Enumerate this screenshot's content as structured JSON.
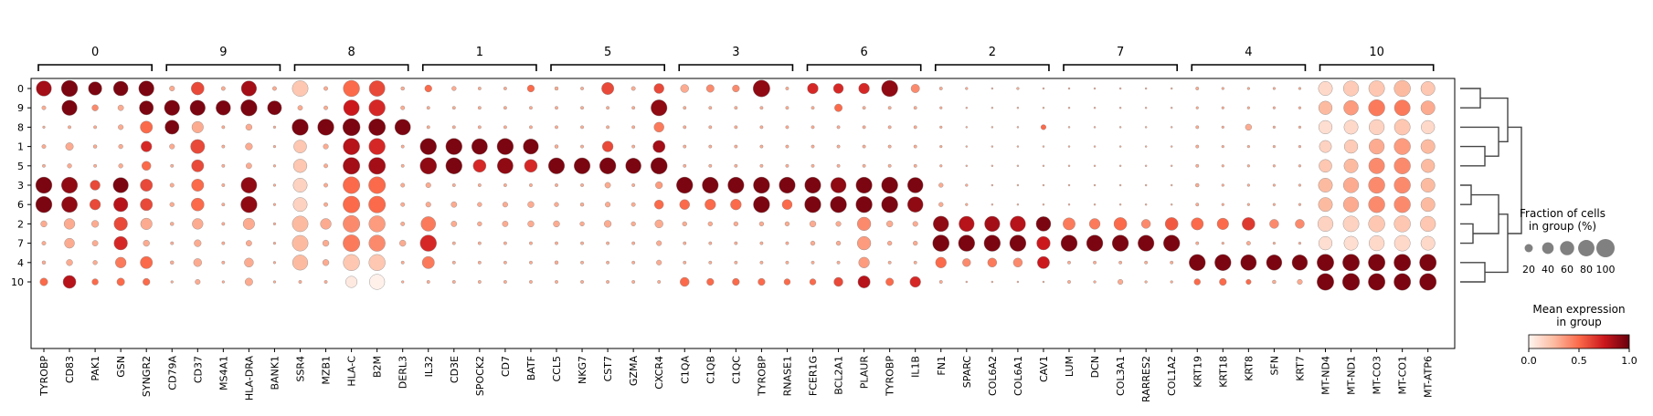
{
  "chart_data": {
    "type": "dotplot",
    "gene_groups": [
      {
        "label": "0",
        "genes": [
          "TYROBP",
          "CD83",
          "PAK1",
          "GSN",
          "SYNGR2"
        ]
      },
      {
        "label": "9",
        "genes": [
          "CD79A",
          "CD37",
          "MS4A1",
          "HLA-DRA",
          "BANK1"
        ]
      },
      {
        "label": "8",
        "genes": [
          "SSR4",
          "MZB1",
          "HLA-C",
          "B2M",
          "DERL3"
        ]
      },
      {
        "label": "1",
        "genes": [
          "IL32",
          "CD3E",
          "SPOCK2",
          "CD7",
          "BATF"
        ]
      },
      {
        "label": "5",
        "genes": [
          "CCL5",
          "NKG7",
          "CST7",
          "GZMA",
          "CXCR4"
        ]
      },
      {
        "label": "3",
        "genes": [
          "C1QA",
          "C1QB",
          "C1QC",
          "TYROBP",
          "RNASE1"
        ]
      },
      {
        "label": "6",
        "genes": [
          "FCER1G",
          "BCL2A1",
          "PLAUR",
          "TYROBP",
          "IL1B"
        ]
      },
      {
        "label": "2",
        "genes": [
          "FN1",
          "SPARC",
          "COL6A2",
          "COL6A1",
          "CAV1"
        ]
      },
      {
        "label": "7",
        "genes": [
          "LUM",
          "DCN",
          "COL3A1",
          "RARRES2",
          "COL1A2"
        ]
      },
      {
        "label": "4",
        "genes": [
          "KRT19",
          "KRT18",
          "KRT8",
          "SFN",
          "KRT7"
        ]
      },
      {
        "label": "10",
        "genes": [
          "MT-ND4",
          "MT-ND1",
          "MT-CO3",
          "MT-CO1",
          "MT-ATP6"
        ]
      }
    ],
    "cluster_order": [
      "0",
      "9",
      "8",
      "1",
      "5",
      "3",
      "6",
      "2",
      "7",
      "4",
      "10"
    ],
    "fraction": [
      [
        70,
        80,
        55,
        65,
        70,
        8,
        50,
        5,
        70,
        5,
        75,
        5,
        80,
        75,
        4,
        15,
        6,
        3,
        3,
        15,
        4,
        3,
        45,
        5,
        30,
        20,
        18,
        15,
        85,
        3,
        35,
        30,
        35,
        80,
        22,
        3,
        2,
        1,
        2,
        1,
        1,
        1,
        1,
        1,
        1,
        3,
        2,
        2,
        2,
        2,
        60,
        70,
        75,
        80,
        60
      ],
      [
        5,
        70,
        12,
        10,
        60,
        70,
        70,
        65,
        80,
        60,
        7,
        5,
        75,
        80,
        5,
        3,
        3,
        3,
        3,
        3,
        3,
        3,
        3,
        3,
        78,
        3,
        3,
        3,
        3,
        3,
        3,
        18,
        3,
        3,
        3,
        2,
        1,
        1,
        1,
        1,
        1,
        1,
        1,
        1,
        1,
        2,
        2,
        2,
        2,
        2,
        55,
        65,
        80,
        75,
        60
      ],
      [
        2,
        3,
        3,
        8,
        45,
        60,
        40,
        3,
        12,
        2,
        80,
        80,
        90,
        85,
        75,
        3,
        3,
        3,
        3,
        3,
        3,
        3,
        3,
        3,
        30,
        3,
        3,
        3,
        3,
        3,
        3,
        3,
        3,
        3,
        3,
        2,
        1,
        1,
        1,
        8,
        1,
        1,
        1,
        1,
        1,
        3,
        2,
        12,
        2,
        2,
        55,
        60,
        70,
        75,
        55
      ],
      [
        5,
        18,
        4,
        6,
        35,
        8,
        60,
        3,
        15,
        2,
        50,
        8,
        82,
        80,
        3,
        80,
        80,
        75,
        80,
        70,
        4,
        3,
        35,
        3,
        45,
        3,
        3,
        3,
        3,
        3,
        3,
        3,
        3,
        3,
        3,
        2,
        1,
        1,
        1,
        1,
        1,
        1,
        1,
        1,
        1,
        3,
        2,
        2,
        2,
        2,
        45,
        55,
        70,
        80,
        60
      ],
      [
        3,
        6,
        3,
        6,
        25,
        3,
        45,
        3,
        10,
        2,
        55,
        5,
        85,
        85,
        3,
        82,
        80,
        50,
        75,
        50,
        78,
        78,
        80,
        72,
        82,
        3,
        3,
        3,
        3,
        3,
        3,
        3,
        3,
        3,
        3,
        2,
        1,
        1,
        1,
        1,
        1,
        1,
        1,
        1,
        1,
        3,
        2,
        2,
        2,
        2,
        50,
        60,
        75,
        80,
        55
      ],
      [
        80,
        78,
        30,
        70,
        45,
        5,
        45,
        3,
        75,
        2,
        60,
        5,
        85,
        85,
        5,
        8,
        3,
        3,
        3,
        3,
        3,
        3,
        10,
        3,
        15,
        80,
        78,
        78,
        80,
        78,
        78,
        72,
        78,
        80,
        72,
        6,
        2,
        1,
        1,
        1,
        1,
        1,
        1,
        1,
        1,
        4,
        2,
        2,
        2,
        2,
        60,
        70,
        80,
        80,
        60
      ],
      [
        80,
        75,
        35,
        62,
        45,
        6,
        50,
        3,
        80,
        2,
        60,
        5,
        85,
        85,
        5,
        8,
        10,
        6,
        8,
        12,
        6,
        4,
        8,
        5,
        25,
        30,
        35,
        35,
        80,
        30,
        80,
        80,
        80,
        80,
        72,
        6,
        2,
        1,
        1,
        1,
        1,
        1,
        1,
        1,
        1,
        3,
        2,
        2,
        2,
        2,
        60,
        70,
        80,
        80,
        60
      ],
      [
        12,
        35,
        15,
        55,
        40,
        4,
        35,
        3,
        40,
        2,
        75,
        35,
        85,
        80,
        5,
        65,
        10,
        6,
        10,
        12,
        12,
        6,
        15,
        6,
        20,
        6,
        6,
        6,
        6,
        6,
        12,
        8,
        55,
        12,
        8,
        72,
        70,
        70,
        72,
        65,
        45,
        35,
        50,
        25,
        50,
        45,
        40,
        50,
        25,
        25,
        70,
        75,
        80,
        80,
        70
      ],
      [
        5,
        30,
        10,
        55,
        12,
        3,
        15,
        3,
        10,
        2,
        75,
        12,
        85,
        80,
        12,
        80,
        3,
        3,
        3,
        3,
        3,
        3,
        3,
        3,
        8,
        3,
        3,
        3,
        3,
        3,
        6,
        6,
        55,
        6,
        6,
        82,
        80,
        80,
        80,
        55,
        80,
        80,
        80,
        78,
        80,
        3,
        2,
        5,
        2,
        2,
        55,
        60,
        70,
        75,
        60
      ],
      [
        4,
        12,
        6,
        35,
        45,
        4,
        20,
        3,
        25,
        2,
        70,
        12,
        80,
        80,
        3,
        45,
        3,
        3,
        3,
        3,
        4,
        3,
        3,
        3,
        8,
        3,
        3,
        3,
        3,
        3,
        3,
        3,
        35,
        3,
        3,
        35,
        20,
        25,
        25,
        45,
        3,
        3,
        3,
        3,
        3,
        80,
        80,
        75,
        72,
        72,
        85,
        85,
        85,
        85,
        85
      ],
      [
        18,
        50,
        12,
        18,
        15,
        2,
        8,
        2,
        18,
        2,
        3,
        3,
        40,
        70,
        2,
        3,
        3,
        3,
        3,
        3,
        3,
        3,
        3,
        3,
        3,
        25,
        15,
        15,
        15,
        12,
        12,
        25,
        45,
        18,
        35,
        3,
        1,
        1,
        1,
        1,
        3,
        2,
        8,
        2,
        2,
        12,
        15,
        8,
        4,
        8,
        85,
        88,
        85,
        85,
        85
      ]
    ],
    "expression": [
      [
        0.85,
        0.95,
        0.95,
        0.95,
        0.95,
        0.3,
        0.6,
        0.3,
        0.85,
        0.3,
        0.2,
        0.3,
        0.5,
        0.6,
        0.3,
        0.5,
        0.3,
        0.3,
        0.3,
        0.5,
        0.3,
        0.3,
        0.6,
        0.3,
        0.6,
        0.3,
        0.4,
        0.4,
        0.9,
        0.3,
        0.7,
        0.7,
        0.7,
        0.9,
        0.4,
        0.3,
        0.3,
        0.3,
        0.3,
        0.3,
        0.3,
        0.3,
        0.3,
        0.3,
        0.3,
        0.3,
        0.3,
        0.3,
        0.3,
        0.3,
        0.12,
        0.18,
        0.2,
        0.25,
        0.2
      ],
      [
        0.3,
        0.95,
        0.4,
        0.3,
        0.95,
        0.95,
        0.95,
        0.95,
        0.95,
        0.95,
        0.3,
        0.3,
        0.75,
        0.7,
        0.3,
        0.3,
        0.3,
        0.3,
        0.3,
        0.3,
        0.3,
        0.3,
        0.3,
        0.3,
        0.9,
        0.3,
        0.3,
        0.3,
        0.3,
        0.3,
        0.3,
        0.5,
        0.3,
        0.3,
        0.3,
        0.3,
        0.3,
        0.3,
        0.3,
        0.3,
        0.3,
        0.3,
        0.3,
        0.3,
        0.3,
        0.3,
        0.3,
        0.3,
        0.3,
        0.3,
        0.25,
        0.35,
        0.45,
        0.45,
        0.3
      ],
      [
        0.3,
        0.3,
        0.3,
        0.3,
        0.5,
        0.95,
        0.3,
        0.3,
        0.3,
        0.3,
        0.95,
        0.95,
        0.95,
        0.95,
        0.95,
        0.3,
        0.3,
        0.3,
        0.3,
        0.3,
        0.3,
        0.3,
        0.3,
        0.3,
        0.45,
        0.3,
        0.3,
        0.3,
        0.3,
        0.3,
        0.3,
        0.3,
        0.3,
        0.3,
        0.3,
        0.3,
        0.3,
        0.3,
        0.3,
        0.5,
        0.3,
        0.3,
        0.3,
        0.3,
        0.3,
        0.3,
        0.3,
        0.3,
        0.3,
        0.3,
        0.1,
        0.12,
        0.15,
        0.2,
        0.12
      ],
      [
        0.3,
        0.3,
        0.3,
        0.3,
        0.7,
        0.3,
        0.6,
        0.3,
        0.3,
        0.3,
        0.2,
        0.3,
        0.8,
        0.7,
        0.3,
        0.95,
        0.95,
        0.95,
        0.95,
        0.95,
        0.3,
        0.3,
        0.6,
        0.3,
        0.85,
        0.3,
        0.3,
        0.3,
        0.3,
        0.3,
        0.3,
        0.3,
        0.3,
        0.3,
        0.3,
        0.3,
        0.3,
        0.3,
        0.3,
        0.3,
        0.3,
        0.3,
        0.3,
        0.3,
        0.3,
        0.3,
        0.3,
        0.3,
        0.3,
        0.3,
        0.15,
        0.18,
        0.3,
        0.35,
        0.25
      ],
      [
        0.3,
        0.3,
        0.3,
        0.3,
        0.5,
        0.3,
        0.6,
        0.3,
        0.3,
        0.3,
        0.2,
        0.3,
        0.85,
        0.85,
        0.3,
        0.9,
        0.95,
        0.7,
        0.9,
        0.7,
        0.95,
        0.95,
        0.95,
        0.95,
        0.95,
        0.3,
        0.3,
        0.3,
        0.3,
        0.3,
        0.3,
        0.3,
        0.3,
        0.3,
        0.3,
        0.3,
        0.3,
        0.3,
        0.3,
        0.3,
        0.3,
        0.3,
        0.3,
        0.3,
        0.3,
        0.3,
        0.3,
        0.3,
        0.3,
        0.3,
        0.2,
        0.25,
        0.4,
        0.4,
        0.25
      ],
      [
        0.95,
        0.9,
        0.6,
        0.95,
        0.6,
        0.3,
        0.5,
        0.3,
        0.9,
        0.3,
        0.15,
        0.3,
        0.5,
        0.5,
        0.3,
        0.3,
        0.3,
        0.3,
        0.3,
        0.3,
        0.3,
        0.3,
        0.3,
        0.3,
        0.35,
        0.95,
        0.95,
        0.95,
        0.95,
        0.95,
        0.95,
        0.9,
        0.95,
        0.95,
        0.95,
        0.3,
        0.3,
        0.3,
        0.3,
        0.3,
        0.3,
        0.3,
        0.3,
        0.3,
        0.3,
        0.3,
        0.3,
        0.3,
        0.3,
        0.3,
        0.25,
        0.3,
        0.4,
        0.4,
        0.25
      ],
      [
        0.95,
        0.9,
        0.6,
        0.8,
        0.6,
        0.3,
        0.5,
        0.3,
        0.9,
        0.3,
        0.15,
        0.3,
        0.5,
        0.5,
        0.3,
        0.3,
        0.3,
        0.3,
        0.3,
        0.3,
        0.3,
        0.3,
        0.3,
        0.3,
        0.5,
        0.5,
        0.5,
        0.5,
        0.95,
        0.5,
        0.95,
        0.95,
        0.95,
        0.95,
        0.9,
        0.3,
        0.3,
        0.3,
        0.3,
        0.3,
        0.3,
        0.3,
        0.3,
        0.3,
        0.3,
        0.3,
        0.3,
        0.3,
        0.3,
        0.3,
        0.25,
        0.3,
        0.4,
        0.4,
        0.25
      ],
      [
        0.3,
        0.3,
        0.3,
        0.6,
        0.3,
        0.3,
        0.3,
        0.3,
        0.3,
        0.3,
        0.25,
        0.3,
        0.4,
        0.35,
        0.3,
        0.45,
        0.3,
        0.3,
        0.3,
        0.3,
        0.3,
        0.3,
        0.3,
        0.3,
        0.3,
        0.3,
        0.3,
        0.3,
        0.3,
        0.3,
        0.3,
        0.3,
        0.4,
        0.3,
        0.3,
        0.9,
        0.8,
        0.85,
        0.8,
        0.95,
        0.45,
        0.45,
        0.5,
        0.4,
        0.55,
        0.5,
        0.5,
        0.65,
        0.4,
        0.4,
        0.15,
        0.15,
        0.2,
        0.2,
        0.2
      ],
      [
        0.3,
        0.3,
        0.3,
        0.7,
        0.3,
        0.3,
        0.3,
        0.3,
        0.3,
        0.3,
        0.25,
        0.3,
        0.45,
        0.4,
        0.3,
        0.7,
        0.3,
        0.3,
        0.3,
        0.3,
        0.3,
        0.3,
        0.3,
        0.3,
        0.3,
        0.3,
        0.3,
        0.3,
        0.3,
        0.3,
        0.3,
        0.3,
        0.35,
        0.3,
        0.3,
        0.95,
        0.95,
        0.95,
        0.95,
        0.75,
        0.95,
        0.95,
        0.95,
        0.95,
        0.95,
        0.3,
        0.3,
        0.3,
        0.3,
        0.3,
        0.1,
        0.1,
        0.12,
        0.12,
        0.12
      ],
      [
        0.3,
        0.3,
        0.3,
        0.45,
        0.5,
        0.3,
        0.3,
        0.3,
        0.3,
        0.3,
        0.25,
        0.3,
        0.2,
        0.2,
        0.3,
        0.45,
        0.3,
        0.3,
        0.3,
        0.3,
        0.3,
        0.3,
        0.3,
        0.3,
        0.3,
        0.3,
        0.3,
        0.3,
        0.3,
        0.3,
        0.3,
        0.3,
        0.35,
        0.3,
        0.3,
        0.5,
        0.4,
        0.45,
        0.4,
        0.75,
        0.3,
        0.3,
        0.3,
        0.3,
        0.3,
        0.95,
        0.95,
        0.95,
        0.95,
        0.95,
        0.95,
        0.95,
        0.95,
        0.95,
        0.95
      ],
      [
        0.5,
        0.8,
        0.5,
        0.5,
        0.5,
        0.3,
        0.3,
        0.3,
        0.3,
        0.3,
        0.3,
        0.3,
        0.05,
        0.02,
        0.3,
        0.3,
        0.3,
        0.3,
        0.3,
        0.3,
        0.3,
        0.3,
        0.3,
        0.3,
        0.3,
        0.5,
        0.5,
        0.5,
        0.5,
        0.5,
        0.5,
        0.6,
        0.8,
        0.5,
        0.7,
        0.3,
        0.3,
        0.3,
        0.3,
        0.3,
        0.3,
        0.3,
        0.3,
        0.3,
        0.3,
        0.5,
        0.5,
        0.5,
        0.3,
        0.3,
        0.95,
        0.95,
        0.95,
        0.95,
        0.95
      ]
    ],
    "size_legend": {
      "title_line1": "Fraction of cells",
      "title_line2": "in group (%)",
      "ticks": [
        20,
        40,
        60,
        80,
        100
      ]
    },
    "color_legend": {
      "title_line1": "Mean expression",
      "title_line2": "in group",
      "ticks": [
        "0.0",
        "0.5",
        "1.0"
      ],
      "range": [
        0,
        1
      ],
      "colors": [
        "#fff5f0",
        "#fcbba1",
        "#fb6a4a",
        "#cb181d",
        "#67000d"
      ]
    },
    "dendrogram": true,
    "grid": false
  }
}
